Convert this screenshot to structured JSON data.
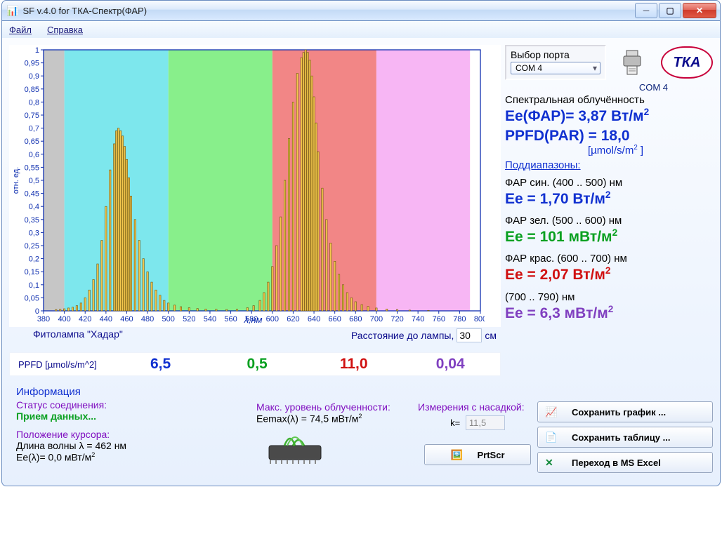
{
  "window": {
    "title": "SF v.4.0 for ТКА-Спектр(ФАР)"
  },
  "menu": {
    "file": "Файл",
    "help": "Справка"
  },
  "port": {
    "label": "Выбор порта",
    "value": "COM 4",
    "status": "COM  4"
  },
  "logo": {
    "text": "ТКА"
  },
  "spectral_header": "Спектральная облучённость",
  "ee_far": {
    "label": "Ee(ФАР)= ",
    "value": "3,87 Вт/м",
    "sup": "2"
  },
  "ppfd_par": {
    "label": "PPFD(PAR) = ",
    "value": "18,0",
    "unit": "[µmol/s/m",
    "sup": "2",
    "unit_close": "  ]"
  },
  "subranges_label": "Поддиапазоны:",
  "ranges": {
    "blue": {
      "name": "ФАР син. (400 .. 500) нм",
      "val_label": "Ee = ",
      "value": "1,70 Вт/м",
      "sup": "2"
    },
    "green": {
      "name": "ФАР зел. (500 .. 600) нм",
      "val_label": "Ee = ",
      "value": "101 мВт/м",
      "sup": "2"
    },
    "red": {
      "name": "ФАР крас. (600 .. 700) нм",
      "val_label": "Ee = ",
      "value": "2,07 Вт/м",
      "sup": "2"
    },
    "nir": {
      "name": "(700 .. 790) нм",
      "val_label": "Ee = ",
      "value": "6,3 мВт/м",
      "sup": "2"
    }
  },
  "chart": {
    "ylabel": "отн. ед.",
    "xlabel": "λ,нм",
    "lamp_label": "Фитолампа \"Хадар\"",
    "dist_label": "Расстояние до лампы,",
    "dist_value": "30",
    "dist_unit": "см",
    "yticks": [
      "0",
      "0,05",
      "0,1",
      "0,15",
      "0,2",
      "0,25",
      "0,3",
      "0,35",
      "0,4",
      "0,45",
      "0,5",
      "0,55",
      "0,6",
      "0,65",
      "0,7",
      "0,75",
      "0,8",
      "0,85",
      "0,9",
      "0,95",
      "1"
    ],
    "xticks": [
      "380",
      "400",
      "420",
      "440",
      "460",
      "480",
      "500",
      "520",
      "540",
      "560",
      "580",
      "600",
      "620",
      "640",
      "660",
      "680",
      "700",
      "720",
      "740",
      "760",
      "780",
      "800"
    ],
    "xlim": [
      380,
      800
    ],
    "ylim": [
      0,
      1
    ],
    "bar_color": "#f5c84d",
    "bar_stroke": "#6b5410",
    "zones": [
      {
        "start": 380,
        "end": 400,
        "color": "#c6c6c6"
      },
      {
        "start": 400,
        "end": 500,
        "color": "#7de7ed"
      },
      {
        "start": 500,
        "end": 600,
        "color": "#88ef8b"
      },
      {
        "start": 600,
        "end": 700,
        "color": "#f28686"
      },
      {
        "start": 700,
        "end": 790,
        "color": "#f7b6f4"
      }
    ],
    "data": [
      [
        392,
        0.005
      ],
      [
        396,
        0.006
      ],
      [
        400,
        0.008
      ],
      [
        404,
        0.011
      ],
      [
        408,
        0.014
      ],
      [
        412,
        0.02
      ],
      [
        416,
        0.03
      ],
      [
        420,
        0.05
      ],
      [
        424,
        0.08
      ],
      [
        428,
        0.12
      ],
      [
        432,
        0.18
      ],
      [
        436,
        0.27
      ],
      [
        440,
        0.4
      ],
      [
        444,
        0.54
      ],
      [
        448,
        0.64
      ],
      [
        450,
        0.69
      ],
      [
        452,
        0.7
      ],
      [
        454,
        0.69
      ],
      [
        456,
        0.67
      ],
      [
        458,
        0.63
      ],
      [
        460,
        0.58
      ],
      [
        462,
        0.51
      ],
      [
        464,
        0.44
      ],
      [
        468,
        0.35
      ],
      [
        472,
        0.27
      ],
      [
        476,
        0.2
      ],
      [
        480,
        0.15
      ],
      [
        484,
        0.11
      ],
      [
        488,
        0.08
      ],
      [
        492,
        0.06
      ],
      [
        496,
        0.04
      ],
      [
        500,
        0.03
      ],
      [
        506,
        0.022
      ],
      [
        512,
        0.016
      ],
      [
        520,
        0.012
      ],
      [
        528,
        0.009
      ],
      [
        536,
        0.007
      ],
      [
        546,
        0.006
      ],
      [
        556,
        0.005
      ],
      [
        566,
        0.006
      ],
      [
        576,
        0.012
      ],
      [
        582,
        0.02
      ],
      [
        588,
        0.04
      ],
      [
        592,
        0.07
      ],
      [
        596,
        0.11
      ],
      [
        600,
        0.17
      ],
      [
        604,
        0.25
      ],
      [
        608,
        0.36
      ],
      [
        612,
        0.5
      ],
      [
        616,
        0.66
      ],
      [
        620,
        0.8
      ],
      [
        624,
        0.91
      ],
      [
        628,
        0.97
      ],
      [
        630,
        0.99
      ],
      [
        632,
        1.0
      ],
      [
        634,
        0.99
      ],
      [
        636,
        0.96
      ],
      [
        638,
        0.9
      ],
      [
        640,
        0.82
      ],
      [
        642,
        0.72
      ],
      [
        644,
        0.61
      ],
      [
        648,
        0.47
      ],
      [
        652,
        0.35
      ],
      [
        656,
        0.26
      ],
      [
        660,
        0.19
      ],
      [
        664,
        0.14
      ],
      [
        668,
        0.1
      ],
      [
        672,
        0.07
      ],
      [
        676,
        0.05
      ],
      [
        680,
        0.035
      ],
      [
        686,
        0.024
      ],
      [
        692,
        0.017
      ],
      [
        700,
        0.011
      ],
      [
        710,
        0.007
      ],
      [
        720,
        0.005
      ],
      [
        732,
        0.003
      ],
      [
        750,
        0.002
      ]
    ]
  },
  "ppfd_row": {
    "label": "PPFD [µmol/s/m^2]",
    "vals": {
      "blue": "6,5",
      "green": "0,5",
      "red": "11,0",
      "nir": "0,04"
    }
  },
  "info": {
    "header": "Информация",
    "status_label": "Статус соединения:",
    "status_value": "Прием данных...",
    "cursor_label": "Положение курсора:",
    "wavelength_label": "Длина волны λ    = ",
    "wavelength_value": "462 нм",
    "ee_cursor_label": "Ee(λ)= ",
    "ee_cursor_value": "0,0 мВт/м",
    "ee_cursor_sup": "2",
    "max_label": "Макс. уровень облученности:",
    "max_value_label": "Eemax(λ) = ",
    "max_value": "74,5 мВт/м",
    "max_sup": "2",
    "attachment_label": "Измерения с насадкой:",
    "k_label": "k= ",
    "k_value": "11,5"
  },
  "buttons": {
    "save_chart": "Сохранить график ...",
    "save_table": "Сохранить таблицу ...",
    "excel": "Переход в MS Excel",
    "prtscr": "PrtScr"
  }
}
